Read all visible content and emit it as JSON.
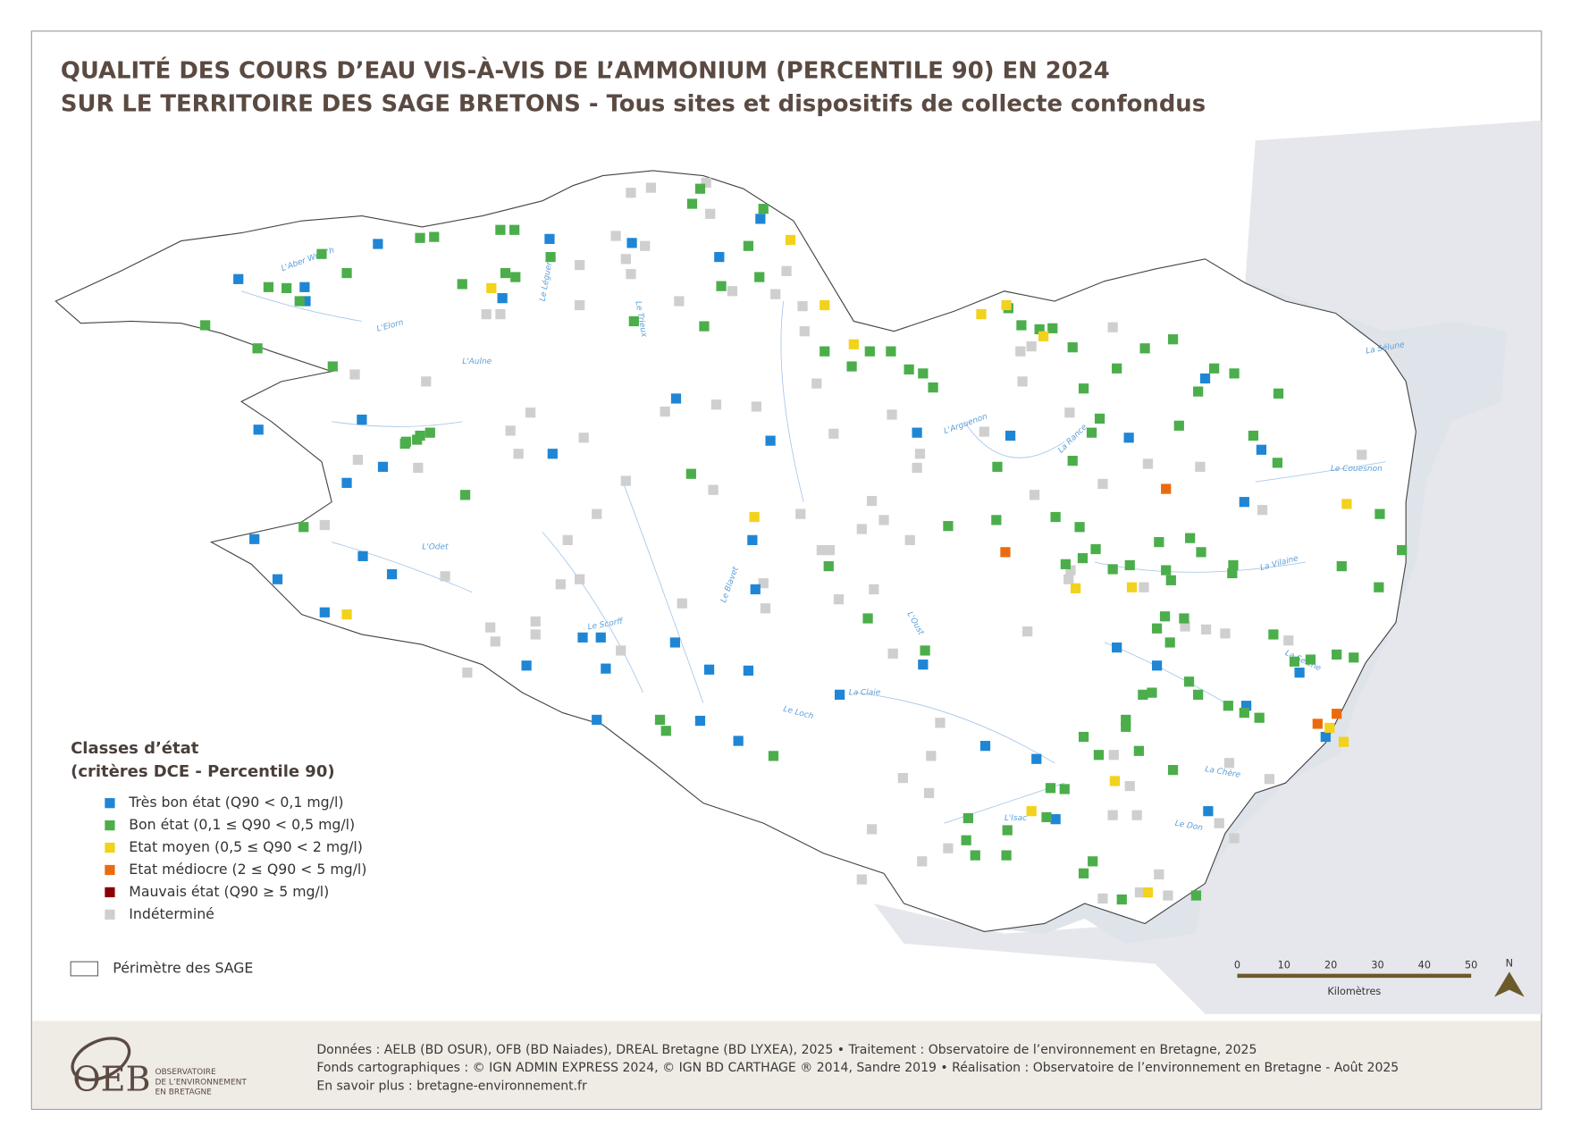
{
  "title": [
    "QUALITÉ DES COURS D’EAU VIS-À-VIS DE L’AMMONIUM (PERCENTILE 90) EN 2024",
    "SUR LE TERRITOIRE DES SAGE BRETONS - Tous sites et dispositifs de collecte confondus"
  ],
  "legend": {
    "title": [
      "Classes d’état",
      "(critères DCE - Percentile 90)"
    ],
    "classes": [
      {
        "label": "Très bon état (Q90 < 0,1 mg/l)",
        "color": "#1f86d6"
      },
      {
        "label": "Bon état (0,1 ≤ Q90 < 0,5 mg/l)",
        "color": "#4bae4b"
      },
      {
        "label": "Etat moyen (0,5 ≤ Q90 < 2 mg/l)",
        "color": "#f2d21c"
      },
      {
        "label": "Etat médiocre (2 ≤ Q90 < 5 mg/l)",
        "color": "#ea6b0e"
      },
      {
        "label": "Mauvais état (Q90 ≥ 5 mg/l)",
        "color": "#8b0000"
      },
      {
        "label": "Indéterminé",
        "color": "#cfcfcf"
      }
    ],
    "perimeter": "Périmètre des SAGE"
  },
  "rivers": [
    "L'Aber Wrac'h",
    "L'Elorn",
    "L'Aulne",
    "L'Odet",
    "Le Scorff",
    "Le Blavet",
    "Le Léguer",
    "Le Trieux",
    "L'Arguenon",
    "La Rance",
    "Le Couesnon",
    "La Vilaine",
    "L'Oust",
    "La Claie",
    "Le Loch",
    "La Seiche",
    "Le Don",
    "La Sélune",
    "L'Isac",
    "La Chère"
  ],
  "scale": {
    "ticks": [
      "0",
      "10",
      "20",
      "30",
      "40",
      "50"
    ],
    "unit": "Kilomètres"
  },
  "north": "N",
  "footer": {
    "lines": [
      "Données : AELB (BD OSUR), OFB (BD Naiades), DREAL Bretagne (BD LYXEA), 2025 • Traitement : Observatoire de l’environnement en Bretagne, 2025",
      "Fonds cartographiques : © IGN ADMIN EXPRESS 2024, © IGN BD CARTHAGE ® 2014, Sandre 2019 • Réalisation : Observatoire de l’environnement en Bretagne - Août 2025",
      "En savoir plus : bretagne-environnement.fr"
    ],
    "logo": "OEB",
    "logo_text": [
      "OBSERVATOIRE",
      "DE L’ENVIRONNEMENT",
      "EN BRETAGNE"
    ]
  }
}
